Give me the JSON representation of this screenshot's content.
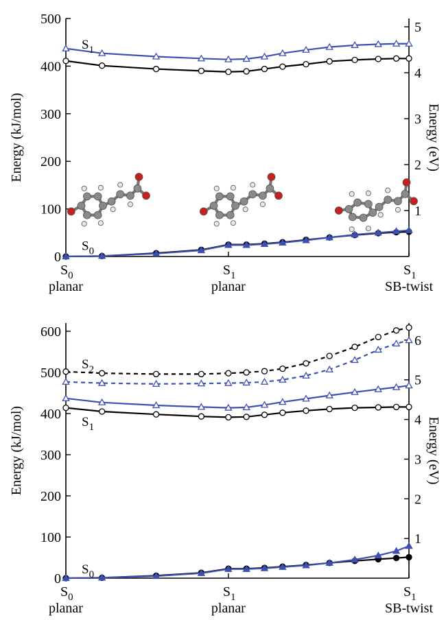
{
  "chart_data": [
    {
      "type": "line",
      "ylabel": "Energy (kJ/mol)",
      "ylabel_right": "Energy (eV)",
      "ylim": [
        0,
        500
      ],
      "yticks": [
        0,
        100,
        200,
        300,
        400,
        500
      ],
      "ylim_right": [
        0,
        5.18
      ],
      "yticks_right": [
        1,
        2,
        3,
        4,
        5
      ],
      "x_categories": [
        {
          "pos": 0,
          "state": "S",
          "sub": "0",
          "desc": "planar"
        },
        {
          "pos": 9,
          "state": "S",
          "sub": "1",
          "desc": "planar"
        },
        {
          "pos": 19,
          "state": "S",
          "sub": "1",
          "desc": "SB-twist"
        }
      ],
      "state_labels": [
        {
          "text": "S",
          "sub": "1",
          "x": 0.8,
          "y": 445
        },
        {
          "text": "S",
          "sub": "0",
          "x": 0.8,
          "y": 22
        }
      ],
      "x": [
        0,
        2,
        5,
        7.5,
        9,
        10,
        11,
        12,
        13.3,
        14.6,
        16,
        17.3,
        18.3,
        19
      ],
      "series": [
        {
          "kind": "S1",
          "style": "solid",
          "color": "#3d4fb0",
          "marker": "triangle",
          "marker_fill": "#ffffff",
          "values": [
            437,
            427,
            420,
            416,
            414,
            415,
            420,
            427,
            434,
            440,
            444,
            446,
            447,
            447
          ]
        },
        {
          "kind": "S1",
          "style": "solid",
          "color": "#000000",
          "marker": "circle",
          "marker_fill": "#ffffff",
          "values": [
            411,
            401,
            394,
            390,
            388,
            389,
            394,
            399,
            404,
            410,
            413,
            415,
            416,
            416
          ]
        },
        {
          "kind": "S0",
          "style": "solid",
          "color": "#000000",
          "marker": "circle",
          "marker_fill": "#000000",
          "values": [
            0,
            1,
            7,
            14,
            25,
            25,
            27,
            30,
            35,
            40,
            45,
            49,
            51,
            52
          ]
        },
        {
          "kind": "S0",
          "style": "solid",
          "color": "#3d4fb0",
          "marker": "triangle",
          "marker_fill": "#3d4fb0",
          "values": [
            0,
            1,
            6,
            13,
            24,
            24,
            26,
            29,
            34,
            40,
            46,
            50,
            53,
            55
          ]
        }
      ]
    },
    {
      "type": "line",
      "ylabel": "Energy (kJ/mol)",
      "ylabel_right": "Energy (eV)",
      "ylim": [
        0,
        620
      ],
      "yticks": [
        0,
        100,
        200,
        300,
        400,
        500,
        600
      ],
      "ylim_right": [
        0,
        6.43
      ],
      "yticks_right": [
        1,
        2,
        3,
        4,
        5,
        6
      ],
      "x_categories": [
        {
          "pos": 0,
          "state": "S",
          "sub": "0",
          "desc": "planar"
        },
        {
          "pos": 9,
          "state": "S",
          "sub": "1",
          "desc": "planar"
        },
        {
          "pos": 19,
          "state": "S",
          "sub": "1",
          "desc": "SB-twist"
        }
      ],
      "state_labels": [
        {
          "text": "S",
          "sub": "2",
          "x": 0.8,
          "y": 520
        },
        {
          "text": "S",
          "sub": "1",
          "x": 0.8,
          "y": 380
        },
        {
          "text": "S",
          "sub": "0",
          "x": 0.8,
          "y": 22
        }
      ],
      "x": [
        0,
        2,
        5,
        7.5,
        9,
        10,
        11,
        12,
        13.3,
        14.6,
        16,
        17.3,
        18.3,
        19
      ],
      "series": [
        {
          "kind": "S2",
          "style": "dashed",
          "color": "#000000",
          "marker": "circle",
          "marker_fill": "#ffffff",
          "values": [
            502,
            498,
            496,
            496,
            498,
            500,
            503,
            509,
            522,
            540,
            562,
            586,
            602,
            609
          ]
        },
        {
          "kind": "S2",
          "style": "dashed",
          "color": "#3d4fb0",
          "marker": "triangle",
          "marker_fill": "#ffffff",
          "values": [
            477,
            474,
            472,
            473,
            474,
            475,
            477,
            482,
            492,
            507,
            530,
            555,
            570,
            578
          ]
        },
        {
          "kind": "S1",
          "style": "solid",
          "color": "#3d4fb0",
          "marker": "triangle",
          "marker_fill": "#ffffff",
          "values": [
            437,
            427,
            420,
            416,
            414,
            415,
            421,
            428,
            436,
            444,
            452,
            459,
            464,
            468
          ]
        },
        {
          "kind": "S1",
          "style": "solid",
          "color": "#000000",
          "marker": "circle",
          "marker_fill": "#ffffff",
          "values": [
            414,
            405,
            398,
            393,
            391,
            392,
            397,
            402,
            407,
            411,
            414,
            415,
            416,
            416
          ]
        },
        {
          "kind": "S0",
          "style": "solid",
          "color": "#000000",
          "marker": "circle",
          "marker_fill": "#000000",
          "values": [
            0,
            1,
            6,
            13,
            23,
            23,
            25,
            28,
            32,
            37,
            42,
            46,
            49,
            51
          ]
        },
        {
          "kind": "S0",
          "style": "solid",
          "color": "#3d4fb0",
          "marker": "triangle",
          "marker_fill": "#3d4fb0",
          "values": [
            0,
            1,
            5,
            12,
            22,
            22,
            24,
            27,
            31,
            37,
            45,
            55,
            66,
            78
          ]
        }
      ]
    }
  ],
  "molecules": [
    {
      "name": "planar-s0-molecule"
    },
    {
      "name": "planar-s1-molecule"
    },
    {
      "name": "twisted-molecule"
    }
  ]
}
